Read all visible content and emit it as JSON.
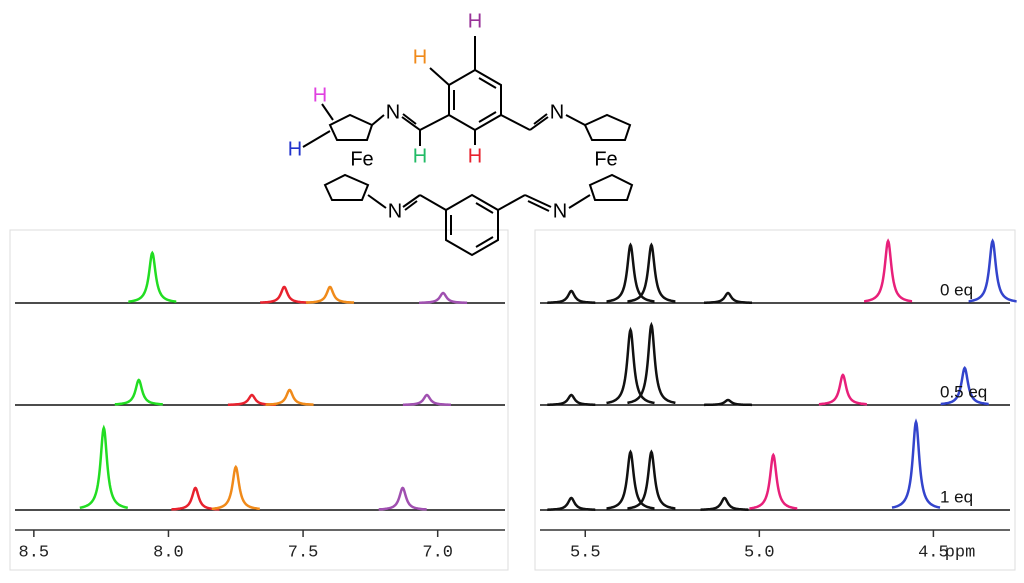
{
  "structure": {
    "labels": [
      {
        "text": "H",
        "color": "#993399"
      },
      {
        "text": "H",
        "color": "#f08a1a"
      },
      {
        "text": "H",
        "color": "#e040e0"
      },
      {
        "text": "N",
        "color": "#000000"
      },
      {
        "text": "N",
        "color": "#000000"
      },
      {
        "text": "H",
        "color": "#2233cc"
      },
      {
        "text": "H",
        "color": "#22bb66"
      },
      {
        "text": "H",
        "color": "#e8222e"
      },
      {
        "text": "Fe",
        "color": "#000000"
      },
      {
        "text": "Fe",
        "color": "#000000"
      },
      {
        "text": "N",
        "color": "#000000"
      },
      {
        "text": "N",
        "color": "#000000"
      }
    ]
  },
  "chart_data": [
    {
      "type": "line",
      "xlim": [
        8.57,
        6.75
      ],
      "ylim": [
        0,
        100
      ],
      "xticks": [
        8.5,
        {
          "value": 8,
          "label": "8.0"
        },
        7.5,
        {
          "value": 7,
          "label": "7.0"
        }
      ],
      "series": [
        {
          "x": [
            8.06,
            7.57,
            7.4,
            6.98
          ],
          "values": [
            50,
            16,
            16,
            10
          ],
          "colors": [
            "#22dd22",
            "#e8222e",
            "#f08a1a",
            "#a050b0"
          ]
        },
        {
          "x": [
            8.11,
            7.69,
            7.55,
            7.04
          ],
          "values": [
            25,
            10,
            15,
            10
          ],
          "colors": [
            "#22dd22",
            "#e8222e",
            "#f08a1a",
            "#a050b0"
          ]
        },
        {
          "x": [
            8.24,
            7.9,
            7.75,
            7.13
          ],
          "values": [
            82,
            22,
            43,
            22
          ],
          "colors": [
            "#22dd22",
            "#e8222e",
            "#f08a1a",
            "#a050b0"
          ]
        }
      ]
    },
    {
      "type": "line",
      "xlim": [
        5.63,
        4.28
      ],
      "ylim": [
        0,
        100
      ],
      "xlabel": "ppm",
      "xticks": [
        5.5,
        {
          "value": 5,
          "label": "5.0"
        },
        4.5
      ],
      "series": [
        {
          "name": "0 eq",
          "x": [
            5.54,
            5.37,
            5.31,
            5.09,
            4.63,
            4.33
          ],
          "values": [
            12,
            58,
            58,
            10,
            62,
            62
          ],
          "colors": [
            "#111111",
            "#111111",
            "#111111",
            "#111111",
            "#e8207a",
            "#3344cc"
          ]
        },
        {
          "name": "0.5 eq",
          "x": [
            5.54,
            5.37,
            5.31,
            5.09,
            4.76,
            4.41
          ],
          "values": [
            10,
            75,
            80,
            5,
            30,
            37
          ],
          "colors": [
            "#111111",
            "#111111",
            "#111111",
            "#111111",
            "#e8207a",
            "#3344cc"
          ]
        },
        {
          "name": "1 eq",
          "x": [
            5.54,
            5.37,
            5.31,
            5.1,
            4.96,
            4.55
          ],
          "values": [
            12,
            58,
            58,
            12,
            55,
            88
          ],
          "colors": [
            "#111111",
            "#111111",
            "#111111",
            "#111111",
            "#e8207a",
            "#3344cc"
          ]
        }
      ]
    }
  ]
}
